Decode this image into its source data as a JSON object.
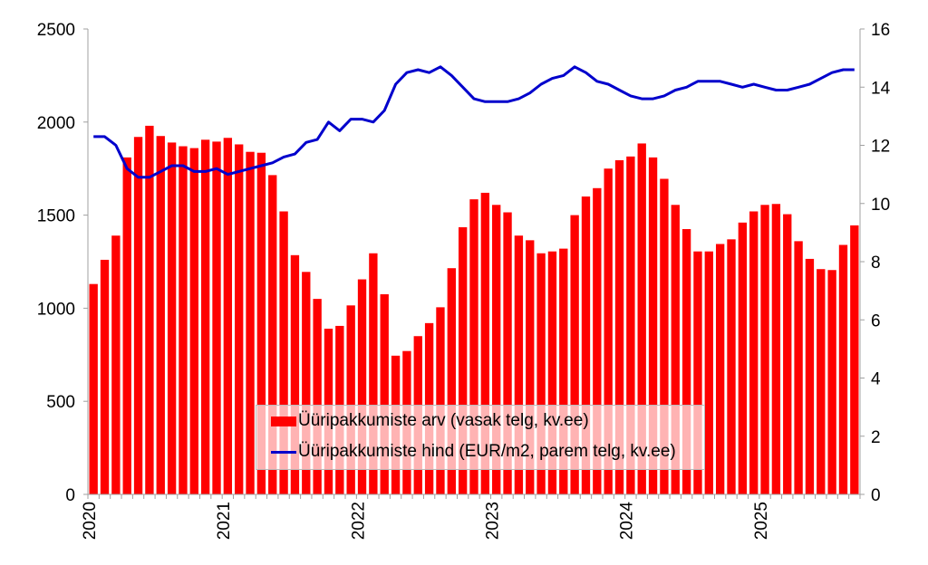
{
  "chart_data": {
    "type": "bar+line",
    "title": "",
    "xlabel": "",
    "ylabel_left": "",
    "ylabel_right": "",
    "ylim_left": [
      0,
      2500
    ],
    "yticks_left": [
      0,
      500,
      1000,
      1500,
      2000,
      2500
    ],
    "ylim_right": [
      0,
      16
    ],
    "yticks_right": [
      0,
      2,
      4,
      6,
      8,
      10,
      12,
      14,
      16
    ],
    "x_tick_labels": [
      "2020",
      "2021",
      "2022",
      "2023",
      "2024",
      "2025"
    ],
    "x_start": "2020-01",
    "x_frequency": "monthly",
    "grid": false,
    "legend_position": "lower center (inside plot)",
    "colors": {
      "bars": "#ff0000",
      "line": "#0000cc",
      "axis": "#a0a0a0"
    },
    "series": [
      {
        "name": "Üüripakkumiste arv (vasak telg, kv.ee)",
        "type": "bar",
        "axis": "left",
        "values": [
          1130,
          1260,
          1390,
          1810,
          1920,
          1980,
          1925,
          1890,
          1870,
          1860,
          1905,
          1895,
          1915,
          1880,
          1840,
          1835,
          1715,
          1520,
          1285,
          1195,
          1050,
          890,
          905,
          1015,
          1155,
          1295,
          1075,
          745,
          770,
          850,
          920,
          1005,
          1215,
          1435,
          1585,
          1620,
          1555,
          1515,
          1390,
          1365,
          1295,
          1305,
          1320,
          1500,
          1600,
          1645,
          1750,
          1795,
          1815,
          1885,
          1810,
          1695,
          1555,
          1425,
          1305,
          1305,
          1345,
          1370,
          1460,
          1520,
          1555,
          1560,
          1505,
          1360,
          1265,
          1210,
          1205,
          1340,
          1445
        ]
      },
      {
        "name": "Üüripakkumiste hind (EUR/m2, parem telg, kv.ee)",
        "type": "line",
        "axis": "right",
        "values": [
          12.3,
          12.3,
          12.0,
          11.2,
          10.9,
          10.9,
          11.1,
          11.3,
          11.3,
          11.1,
          11.1,
          11.2,
          11.0,
          11.1,
          11.2,
          11.3,
          11.4,
          11.6,
          11.7,
          12.1,
          12.2,
          12.8,
          12.5,
          12.9,
          12.9,
          12.8,
          13.2,
          14.1,
          14.5,
          14.6,
          14.5,
          14.7,
          14.4,
          14.0,
          13.6,
          13.5,
          13.5,
          13.5,
          13.6,
          13.8,
          14.1,
          14.3,
          14.4,
          14.7,
          14.5,
          14.2,
          14.1,
          13.9,
          13.7,
          13.6,
          13.6,
          13.7,
          13.9,
          14.0,
          14.2,
          14.2,
          14.2,
          14.1,
          14.0,
          14.1,
          14.0,
          13.9,
          13.9,
          14.0,
          14.1,
          14.3,
          14.5,
          14.6,
          14.6
        ]
      }
    ]
  },
  "legend": {
    "items": [
      {
        "label": "Üüripakkumiste arv (vasak telg, kv.ee)"
      },
      {
        "label": "Üüripakkumiste hind (EUR/m2, parem telg, kv.ee)"
      }
    ]
  }
}
